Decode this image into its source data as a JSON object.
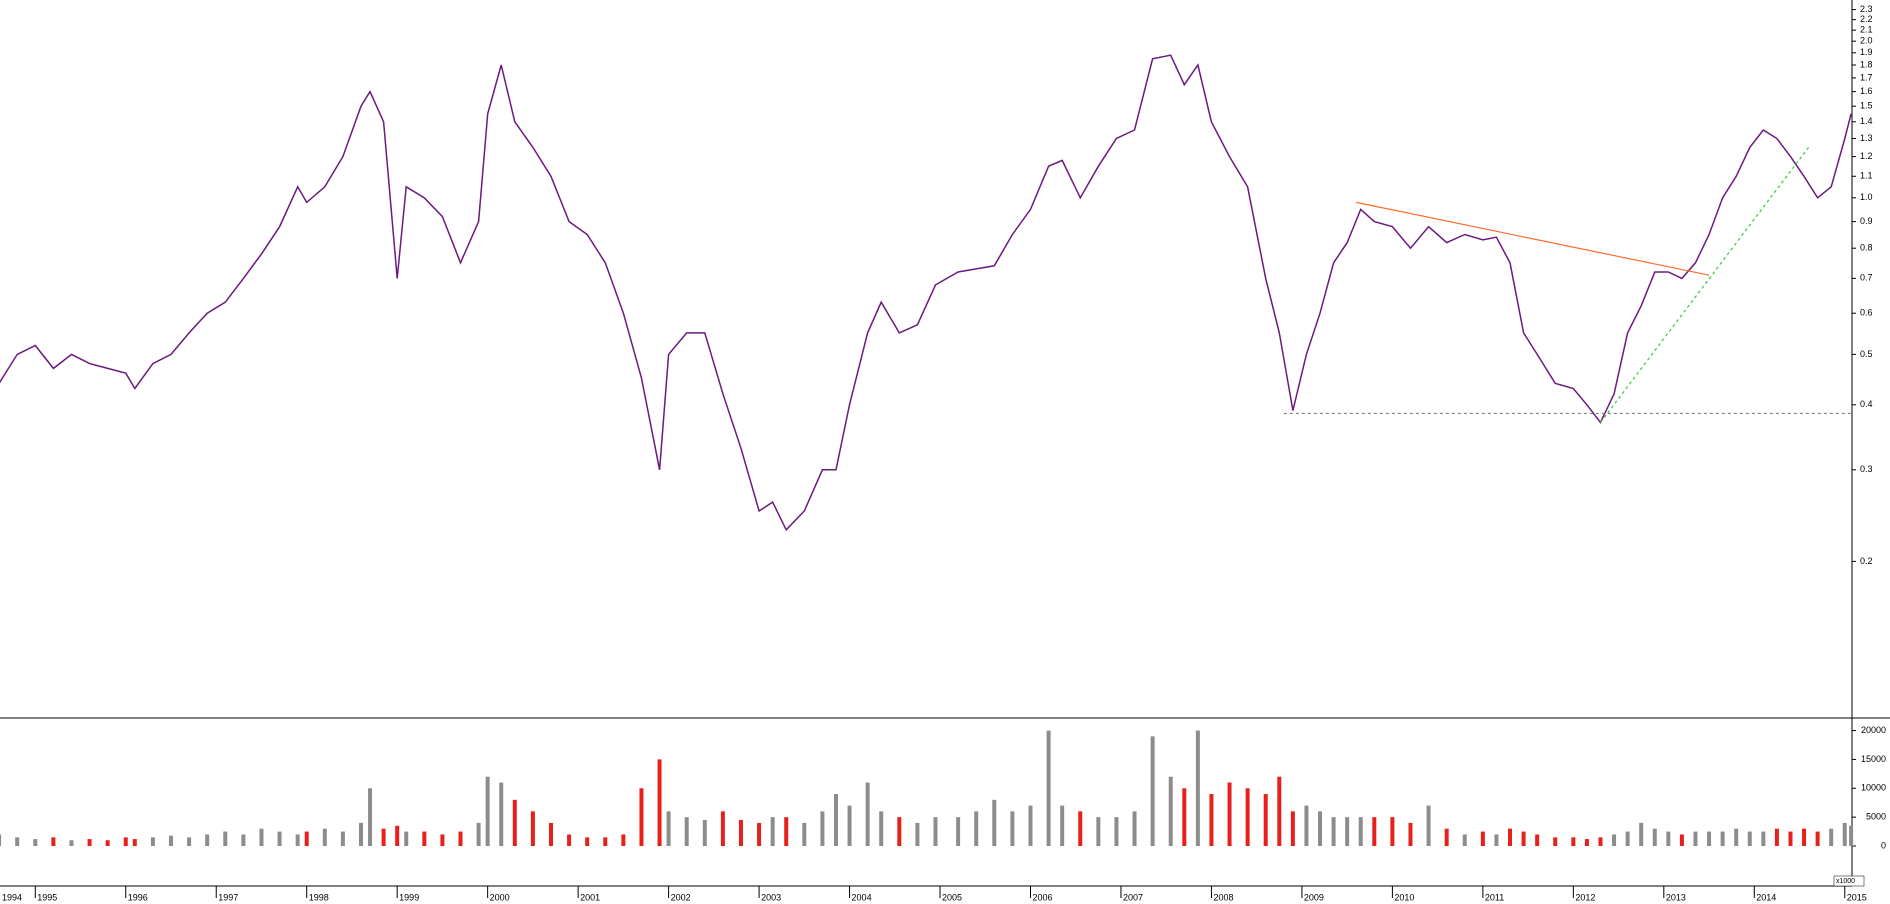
{
  "chart_data": [
    {
      "type": "line",
      "color": "#6b1a7d",
      "log_scale": true,
      "x": [
        1994.6,
        1994.8,
        1995.0,
        1995.2,
        1995.4,
        1995.6,
        1995.8,
        1996.0,
        1996.1,
        1996.3,
        1996.5,
        1996.7,
        1996.9,
        1997.1,
        1997.3,
        1997.5,
        1997.7,
        1997.9,
        1998.0,
        1998.2,
        1998.4,
        1998.6,
        1998.7,
        1998.85,
        1999.0,
        1999.1,
        1999.3,
        1999.5,
        1999.7,
        1999.9,
        2000.0,
        2000.15,
        2000.3,
        2000.5,
        2000.7,
        2000.9,
        2001.1,
        2001.3,
        2001.5,
        2001.7,
        2001.9,
        2002.0,
        2002.2,
        2002.4,
        2002.6,
        2002.8,
        2003.0,
        2003.15,
        2003.3,
        2003.5,
        2003.7,
        2003.85,
        2004.0,
        2004.2,
        2004.35,
        2004.55,
        2004.75,
        2004.95,
        2005.2,
        2005.4,
        2005.6,
        2005.8,
        2006.0,
        2006.2,
        2006.35,
        2006.55,
        2006.75,
        2006.95,
        2007.15,
        2007.35,
        2007.55,
        2007.7,
        2007.85,
        2008.0,
        2008.2,
        2008.4,
        2008.6,
        2008.75,
        2008.9,
        2009.05,
        2009.2,
        2009.35,
        2009.5,
        2009.65,
        2009.8,
        2010.0,
        2010.2,
        2010.4,
        2010.6,
        2010.8,
        2011.0,
        2011.15,
        2011.3,
        2011.45,
        2011.6,
        2011.8,
        2012.0,
        2012.15,
        2012.3,
        2012.45,
        2012.6,
        2012.75,
        2012.9,
        2013.05,
        2013.2,
        2013.35,
        2013.5,
        2013.65,
        2013.8,
        2013.95,
        2014.1,
        2014.25,
        2014.4,
        2014.55,
        2014.7,
        2014.85,
        2015.0,
        2015.07
      ],
      "values": [
        0.44,
        0.5,
        0.52,
        0.47,
        0.5,
        0.48,
        0.47,
        0.46,
        0.43,
        0.48,
        0.5,
        0.55,
        0.6,
        0.63,
        0.7,
        0.78,
        0.88,
        1.05,
        0.98,
        1.05,
        1.2,
        1.5,
        1.6,
        1.4,
        0.7,
        1.05,
        1.0,
        0.92,
        0.75,
        0.9,
        1.45,
        1.8,
        1.4,
        1.25,
        1.1,
        0.9,
        0.85,
        0.75,
        0.6,
        0.45,
        0.3,
        0.5,
        0.55,
        0.55,
        0.42,
        0.33,
        0.25,
        0.26,
        0.23,
        0.25,
        0.3,
        0.3,
        0.4,
        0.55,
        0.63,
        0.55,
        0.57,
        0.68,
        0.72,
        0.73,
        0.74,
        0.85,
        0.95,
        1.15,
        1.18,
        1.0,
        1.15,
        1.3,
        1.35,
        1.85,
        1.88,
        1.65,
        1.8,
        1.4,
        1.2,
        1.05,
        0.7,
        0.55,
        0.39,
        0.5,
        0.6,
        0.75,
        0.82,
        0.95,
        0.9,
        0.88,
        0.8,
        0.88,
        0.82,
        0.85,
        0.83,
        0.84,
        0.75,
        0.55,
        0.5,
        0.44,
        0.43,
        0.4,
        0.37,
        0.42,
        0.55,
        0.62,
        0.72,
        0.72,
        0.7,
        0.75,
        0.85,
        1.0,
        1.1,
        1.25,
        1.35,
        1.3,
        1.2,
        1.1,
        1.0,
        1.05,
        1.3,
        1.45
      ],
      "xlim": [
        1994.61,
        2015.08
      ],
      "xticks": [
        1995,
        1996,
        1997,
        1998,
        1999,
        2000,
        2001,
        2002,
        2003,
        2004,
        2005,
        2006,
        2007,
        2008,
        2009,
        2010,
        2011,
        2012,
        2013,
        2014,
        2015
      ],
      "x_start_label": "1994",
      "ylim": [
        0.1,
        2.4
      ],
      "yticks": [
        0.2,
        0.3,
        0.4,
        0.5,
        0.6,
        0.7,
        0.8,
        0.9,
        {
          "value": 1,
          "label": "1.0"
        },
        1.1,
        1.2,
        1.3,
        1.4,
        1.5,
        1.6,
        1.7,
        1.8,
        1.9,
        {
          "value": 2,
          "label": "2.0"
        },
        2.1,
        2.2,
        2.3
      ],
      "lines": [
        {
          "x": [
            2009.6,
            2013.5
          ],
          "y": [
            0.98,
            0.71
          ],
          "color": "#ff6a2a",
          "dash": false
        },
        {
          "x": [
            2008.8,
            2015.08
          ],
          "y": [
            0.385,
            0.385
          ],
          "color": "#808080",
          "dash": true
        },
        {
          "x": [
            2012.3,
            2014.6
          ],
          "y": [
            0.37,
            1.25
          ],
          "color": "#33cc33",
          "dash": true
        }
      ]
    },
    {
      "type": "bar",
      "up_color": "#8c8c8c",
      "down_color": "#e8201c",
      "unit_label": "x1000",
      "values": [
        2000,
        1500,
        1200,
        1500,
        1000,
        1200,
        1000,
        1500,
        1200,
        1500,
        1800,
        1500,
        2000,
        2500,
        2000,
        3000,
        2500,
        2000,
        2500,
        3000,
        2500,
        4000,
        10000,
        3000,
        3500,
        2500,
        2500,
        2000,
        2500,
        4000,
        12000,
        11000,
        8000,
        6000,
        4000,
        2000,
        1500,
        1500,
        2000,
        10000,
        15000,
        6000,
        5000,
        4500,
        6000,
        4500,
        4000,
        5000,
        5000,
        4000,
        6000,
        9000,
        7000,
        11000,
        6000,
        5000,
        4000,
        5000,
        5000,
        6000,
        8000,
        6000,
        7000,
        20000,
        7000,
        6000,
        5000,
        5000,
        6000,
        19000,
        12000,
        10000,
        20000,
        9000,
        11000,
        10000,
        9000,
        12000,
        6000,
        7000,
        6000,
        5000,
        5000,
        5000,
        5000,
        5000,
        4000,
        7000,
        3000,
        2000,
        2500,
        2000,
        3000,
        2500,
        2000,
        1500,
        1500,
        1200,
        1500,
        2000,
        2500,
        4000,
        3000,
        2500,
        2000,
        2500,
        2500,
        2500,
        3000,
        2500,
        2500,
        3000,
        2500,
        3000,
        2500,
        3000,
        4000,
        3500
      ],
      "ylim": [
        0,
        22000
      ],
      "yticks": [
        0,
        5000,
        10000,
        15000,
        20000
      ]
    }
  ]
}
